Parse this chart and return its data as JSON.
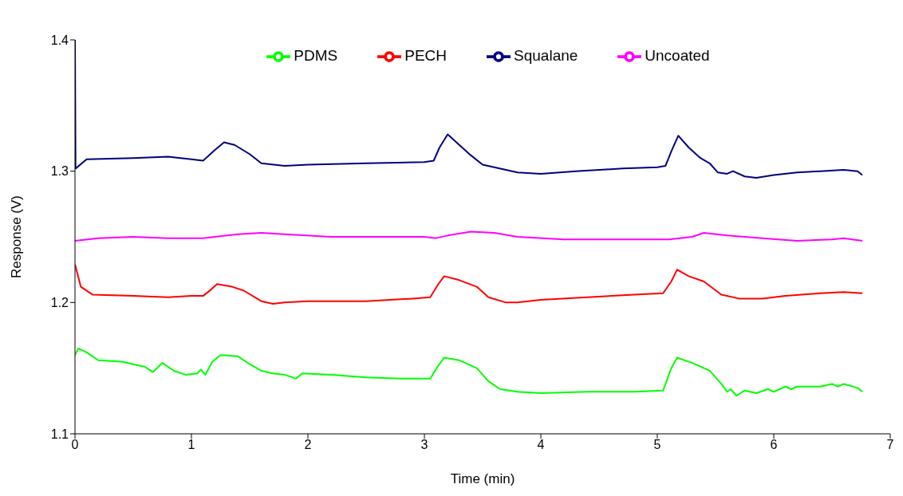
{
  "chart_data": {
    "type": "line",
    "xlabel": "Time (min)",
    "ylabel": "Response (V)",
    "xlim": [
      0,
      7
    ],
    "xticks": [
      0,
      1,
      2,
      3,
      4,
      5,
      6,
      7
    ],
    "ylim": [
      1.1,
      1.4
    ],
    "yticks": [
      1.1,
      1.2,
      1.3,
      1.4
    ],
    "grid": false,
    "legend": "top",
    "marker": "none",
    "line_style": "solid",
    "series": [
      {
        "name": "Squalane",
        "color": "#000080",
        "x": [
          0,
          0.005,
          0.1,
          0.5,
          0.8,
          1.0,
          1.1,
          1.2,
          1.28,
          1.37,
          1.5,
          1.6,
          1.8,
          2.0,
          2.5,
          3.0,
          3.08,
          3.13,
          3.2,
          3.3,
          3.4,
          3.5,
          3.6,
          3.8,
          4.0,
          4.3,
          4.7,
          5.0,
          5.07,
          5.12,
          5.18,
          5.27,
          5.37,
          5.45,
          5.52,
          5.6,
          5.65,
          5.75,
          5.85,
          6.0,
          6.2,
          6.4,
          6.6,
          6.72,
          6.76
        ],
        "values": [
          1.4,
          1.302,
          1.309,
          1.31,
          1.311,
          1.309,
          1.308,
          1.316,
          1.322,
          1.32,
          1.313,
          1.306,
          1.304,
          1.305,
          1.306,
          1.307,
          1.308,
          1.318,
          1.328,
          1.32,
          1.312,
          1.305,
          1.303,
          1.299,
          1.298,
          1.3,
          1.302,
          1.303,
          1.304,
          1.315,
          1.327,
          1.318,
          1.31,
          1.306,
          1.299,
          1.298,
          1.3,
          1.296,
          1.295,
          1.297,
          1.299,
          1.3,
          1.301,
          1.3,
          1.297
        ]
      },
      {
        "name": "Uncoated",
        "color": "#ff00ff",
        "x": [
          0,
          0.2,
          0.5,
          0.8,
          1.0,
          1.1,
          1.2,
          1.4,
          1.6,
          1.8,
          2.2,
          2.8,
          3.0,
          3.1,
          3.2,
          3.4,
          3.6,
          3.8,
          4.2,
          4.8,
          5.1,
          5.3,
          5.4,
          5.6,
          5.9,
          6.2,
          6.5,
          6.6,
          6.76
        ],
        "values": [
          1.247,
          1.249,
          1.25,
          1.249,
          1.249,
          1.249,
          1.25,
          1.252,
          1.253,
          1.252,
          1.25,
          1.25,
          1.25,
          1.249,
          1.251,
          1.254,
          1.253,
          1.25,
          1.248,
          1.248,
          1.248,
          1.25,
          1.253,
          1.251,
          1.249,
          1.247,
          1.248,
          1.249,
          1.247
        ]
      },
      {
        "name": "PECH",
        "color": "#ff0000",
        "x": [
          0,
          0.05,
          0.15,
          0.5,
          0.8,
          1.0,
          1.1,
          1.17,
          1.22,
          1.35,
          1.45,
          1.6,
          1.7,
          1.8,
          2.0,
          2.5,
          2.9,
          3.05,
          3.12,
          3.17,
          3.3,
          3.45,
          3.55,
          3.7,
          3.8,
          4.0,
          4.4,
          4.8,
          5.05,
          5.12,
          5.17,
          5.27,
          5.4,
          5.55,
          5.7,
          5.9,
          6.1,
          6.4,
          6.6,
          6.76
        ],
        "values": [
          1.229,
          1.212,
          1.206,
          1.205,
          1.204,
          1.205,
          1.205,
          1.21,
          1.214,
          1.212,
          1.209,
          1.201,
          1.199,
          1.2,
          1.201,
          1.201,
          1.203,
          1.204,
          1.214,
          1.22,
          1.217,
          1.212,
          1.204,
          1.2,
          1.2,
          1.202,
          1.204,
          1.206,
          1.207,
          1.216,
          1.225,
          1.22,
          1.216,
          1.206,
          1.203,
          1.203,
          1.205,
          1.207,
          1.208,
          1.207
        ]
      },
      {
        "name": "PDMS",
        "color": "#00ff00",
        "x": [
          0,
          0.03,
          0.1,
          0.2,
          0.4,
          0.5,
          0.6,
          0.67,
          0.75,
          0.85,
          0.95,
          1.05,
          1.08,
          1.12,
          1.18,
          1.25,
          1.4,
          1.5,
          1.6,
          1.7,
          1.8,
          1.9,
          1.95,
          2.2,
          2.5,
          2.8,
          3.05,
          3.12,
          3.17,
          3.3,
          3.45,
          3.55,
          3.65,
          3.8,
          4.0,
          4.4,
          4.8,
          5.05,
          5.12,
          5.17,
          5.3,
          5.45,
          5.55,
          5.6,
          5.63,
          5.68,
          5.75,
          5.85,
          5.95,
          6.0,
          6.1,
          6.15,
          6.2,
          6.4,
          6.5,
          6.55,
          6.6,
          6.72,
          6.76
        ],
        "values": [
          1.16,
          1.165,
          1.162,
          1.156,
          1.155,
          1.153,
          1.151,
          1.147,
          1.154,
          1.148,
          1.145,
          1.146,
          1.149,
          1.145,
          1.155,
          1.16,
          1.159,
          1.153,
          1.148,
          1.146,
          1.145,
          1.142,
          1.146,
          1.145,
          1.143,
          1.142,
          1.142,
          1.152,
          1.158,
          1.156,
          1.15,
          1.14,
          1.134,
          1.132,
          1.131,
          1.132,
          1.132,
          1.133,
          1.15,
          1.158,
          1.154,
          1.148,
          1.138,
          1.132,
          1.134,
          1.129,
          1.133,
          1.131,
          1.134,
          1.132,
          1.136,
          1.134,
          1.136,
          1.136,
          1.138,
          1.136,
          1.138,
          1.135,
          1.132
        ]
      }
    ]
  }
}
